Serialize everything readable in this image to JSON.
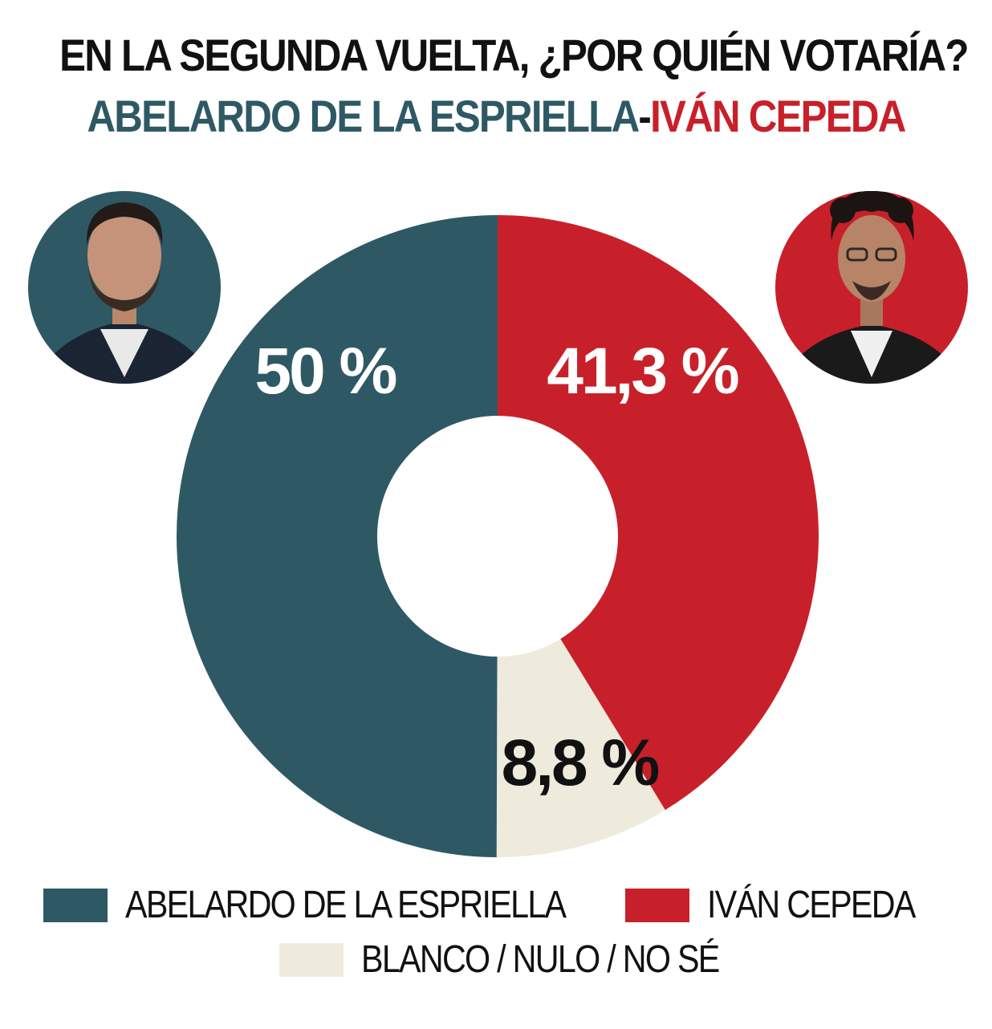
{
  "title": {
    "line1": "EN LA SEGUNDA VUELTA, ¿POR QUIÉN VOTARÍA?",
    "line2_part1": "ABELARDO DE LA ESPRIELLA",
    "line2_sep": "-",
    "line2_part2": "IVÁN CEPEDA"
  },
  "colors": {
    "abelardo": "#2e5964",
    "cepeda": "#c8202a",
    "blanco": "#efebdc",
    "title": "#111111"
  },
  "chart_data": {
    "type": "pie",
    "donut": true,
    "categories": [
      "ABELARDO DE LA ESPRIELLA",
      "IVÁN CEPEDA",
      "BLANCO / NULO / NO SÉ"
    ],
    "values": [
      50,
      41.3,
      8.8
    ],
    "data_labels": [
      "50 %",
      "41,3 %",
      "8,8 %"
    ],
    "colors": [
      "#2e5964",
      "#c8202a",
      "#efebdc"
    ],
    "legend_position": "bottom"
  },
  "legend": {
    "items": [
      {
        "label": "ABELARDO DE LA ESPRIELLA",
        "color": "#2e5964"
      },
      {
        "label": "IVÁN CEPEDA",
        "color": "#c8202a"
      },
      {
        "label": "BLANCO / NULO / NO SÉ",
        "color": "#efebdc"
      }
    ]
  },
  "photos": {
    "left": {
      "name": "abelardo-photo",
      "bg": "#2e5964"
    },
    "right": {
      "name": "cepeda-photo",
      "bg": "#c8202a"
    }
  }
}
